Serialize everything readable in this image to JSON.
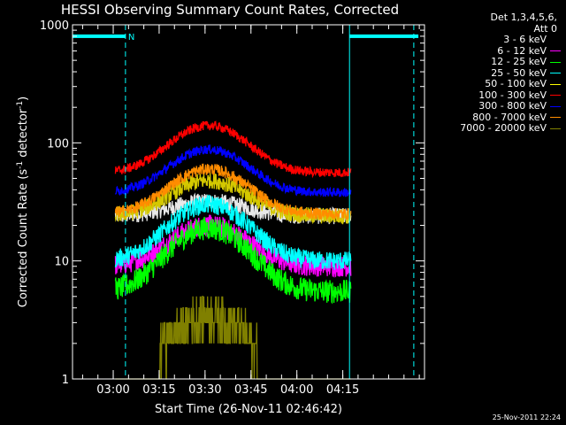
{
  "chart_data": {
    "type": "line",
    "title": "HESSI Observing Summary Count Rates, Corrected",
    "xlabel": "Start Time (26-Nov-11 02:46:42)",
    "ylabel_main": "Corrected Count Rate (s",
    "ylabel_sup1": "-1",
    "ylabel_mid": " detector",
    "ylabel_sup2": "-1",
    "ylabel_end": ")",
    "yscale": "log",
    "ylim": [
      1,
      1000
    ],
    "xlim_minutes": [
      0,
      115
    ],
    "x_ticks": [
      {
        "label": "03:00",
        "minutes": 13.3
      },
      {
        "label": "03:15",
        "minutes": 28.3
      },
      {
        "label": "03:30",
        "minutes": 43.3
      },
      {
        "label": "03:45",
        "minutes": 58.3
      },
      {
        "label": "04:00",
        "minutes": 73.3
      },
      {
        "label": "04:15",
        "minutes": 88.3
      }
    ],
    "y_ticks": [
      {
        "label": "1",
        "value": 1
      },
      {
        "label": "10",
        "value": 10
      },
      {
        "label": "100",
        "value": 100
      },
      {
        "label": "1000",
        "value": 1000
      }
    ],
    "legend_header": [
      "Det 1,3,4,5,6,",
      "Att 0"
    ],
    "data_start_minutes": 14,
    "data_end_minutes": 91,
    "peak_minutes": 44.5,
    "series": [
      {
        "name": "3 - 6 keV",
        "color": "#000000",
        "display_color": "#e8e8e8",
        "baseline": 24,
        "peak": 32,
        "noise": 0.07
      },
      {
        "name": "6 - 12 keV",
        "color": "#ff00ff",
        "baseline": 9,
        "peak": 20,
        "noise": 0.09
      },
      {
        "name": "12 - 25 keV",
        "color": "#00ff00",
        "baseline": 5.5,
        "peak": 19,
        "noise": 0.1
      },
      {
        "name": "25 - 50 keV",
        "color": "#00ffff",
        "baseline": 10,
        "peak": 30,
        "noise": 0.08
      },
      {
        "name": "50 - 100 keV",
        "color": "#ffff00",
        "display_color": "#d4c800",
        "baseline": 24,
        "peak": 48,
        "noise": 0.07
      },
      {
        "name": "100 - 300 keV",
        "color": "#ff0000",
        "baseline": 56,
        "peak": 140,
        "noise": 0.04
      },
      {
        "name": "300 - 800 keV",
        "color": "#0000ff",
        "baseline": 38,
        "peak": 88,
        "noise": 0.04
      },
      {
        "name": "800 - 7000 keV",
        "color": "#ff8c00",
        "baseline": 25,
        "peak": 60,
        "noise": 0.05
      },
      {
        "name": "7000 - 20000 keV",
        "color": "#808000",
        "baseline": 1,
        "peak": 3.5,
        "noise": 0.18
      }
    ],
    "night_marker_label": "N",
    "night_bars": [
      {
        "start_minutes": 0,
        "end_minutes": 17.3,
        "value": 800
      },
      {
        "start_minutes": 90.5,
        "end_minutes": 113,
        "value": 800
      }
    ],
    "vertical_markers_minutes": [
      17.3,
      90.5,
      111.5
    ]
  },
  "footer": {
    "datestamp": "25-Nov-2011 22:24"
  }
}
